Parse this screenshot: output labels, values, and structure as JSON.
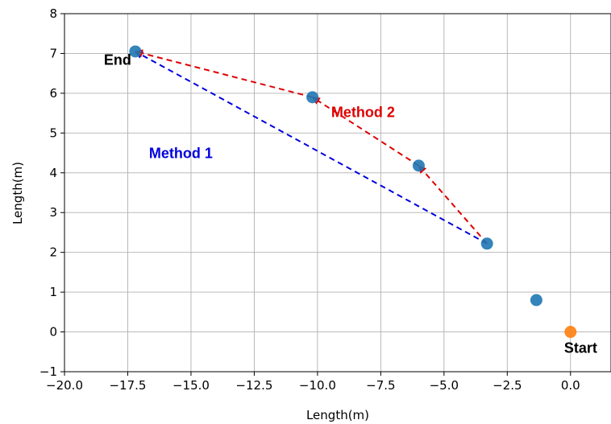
{
  "chart_data": {
    "type": "scatter",
    "xlabel": "Length(m)",
    "ylabel": "Length(m)",
    "xlim": [
      -20.0,
      1.6
    ],
    "ylim": [
      -1,
      8
    ],
    "x_ticks": [
      -20.0,
      -17.5,
      -15.0,
      -12.5,
      -10.0,
      -7.5,
      -5.0,
      -2.5,
      0.0
    ],
    "x_tick_labels": [
      "−20.0",
      "−17.5",
      "−15.0",
      "−12.5",
      "−10.0",
      "−7.5",
      "−5.0",
      "−2.5",
      "0.0"
    ],
    "y_ticks": [
      -1,
      0,
      1,
      2,
      3,
      4,
      5,
      6,
      7,
      8
    ],
    "y_tick_labels": [
      "−1",
      "0",
      "1",
      "2",
      "3",
      "4",
      "5",
      "6",
      "7",
      "8"
    ],
    "grid": true,
    "points": [
      {
        "x": -17.2,
        "y": 7.05,
        "color": "#1f77b4"
      },
      {
        "x": -10.2,
        "y": 5.9,
        "color": "#1f77b4"
      },
      {
        "x": -6.0,
        "y": 4.18,
        "color": "#1f77b4"
      },
      {
        "x": -3.3,
        "y": 2.22,
        "color": "#1f77b4"
      },
      {
        "x": -1.35,
        "y": 0.8,
        "color": "#1f77b4"
      },
      {
        "x": 0.0,
        "y": 0.0,
        "color": "#ff7f0e"
      }
    ],
    "paths": [
      {
        "label": "Method 1",
        "color": "#0000dd",
        "points": [
          [
            -3.3,
            2.22
          ],
          [
            -17.2,
            7.05
          ]
        ]
      },
      {
        "label": "Method 2",
        "color": "#dd0000",
        "points": [
          [
            -3.3,
            2.22
          ],
          [
            -6.0,
            4.18
          ],
          [
            -10.2,
            5.9
          ],
          [
            -17.2,
            7.05
          ]
        ]
      }
    ],
    "annotations": [
      {
        "text": "End",
        "x": -17.9,
        "y": 6.72,
        "color": "#000000"
      },
      {
        "text": "Start",
        "x": 0.4,
        "y": -0.52,
        "color": "#000000"
      },
      {
        "text": "Method 1",
        "x": -15.4,
        "y": 4.37,
        "color": "#0000dd"
      },
      {
        "text": "Method 2",
        "x": -8.2,
        "y": 5.4,
        "color": "#dd0000"
      }
    ]
  }
}
